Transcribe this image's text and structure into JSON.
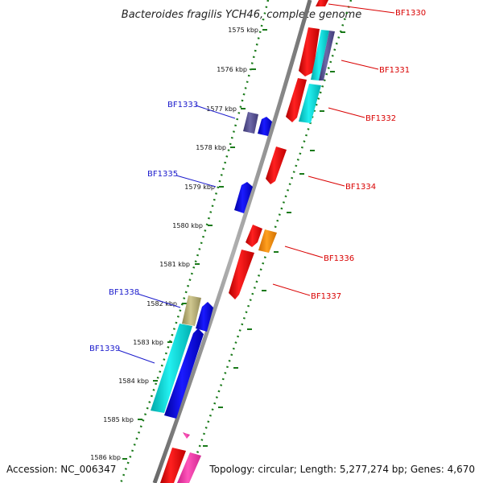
{
  "title": "Bacteroides fragilis YCH46, complete genome",
  "footer": {
    "accession": "Accession: NC_006347",
    "topology": "Topology: circular; Length: 5,277,274 bp; Genes: 4,670"
  },
  "ticks": [
    "1575 kbp",
    "1576 kbp",
    "1577 kbp",
    "1578 kbp",
    "1579 kbp",
    "1580 kbp",
    "1581 kbp",
    "1582 kbp",
    "1583 kbp",
    "1584 kbp",
    "1585 kbp",
    "1586 kbp"
  ],
  "labels_blue": [
    "BF1333",
    "BF1335",
    "BF1338",
    "BF1339"
  ],
  "labels_red": [
    "BF1330",
    "BF1331",
    "BF1332",
    "BF1334",
    "BF1336",
    "BF1337"
  ],
  "colors": {
    "label_blue": "#1a1acc",
    "label_red": "#d90000",
    "tick_green": "#1a7a1a",
    "backbone": "#888888",
    "gene_red": "#e30000",
    "gene_blue": "#0000ee",
    "gene_cyan": "#00cccc",
    "gene_orange": "#ff8c00",
    "gene_khaki": "#b8b070",
    "gene_purple": "#55508a",
    "gene_pink": "#ff44aa"
  }
}
